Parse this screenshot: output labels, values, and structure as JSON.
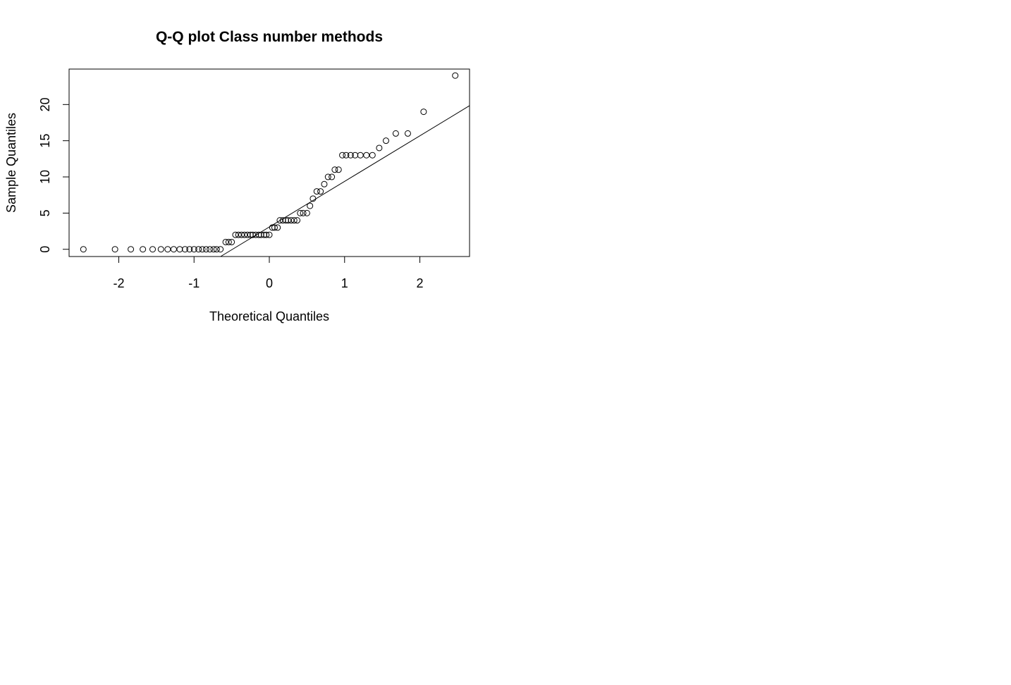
{
  "chart_data": {
    "type": "scatter",
    "title": "Q-Q plot  Class number methods",
    "xlabel": "Theoretical Quantiles",
    "ylabel": "Sample Quantiles",
    "xlim": [
      -2.66,
      2.66
    ],
    "ylim": [
      -1.0,
      24.9
    ],
    "x_ticks": [
      -2,
      -1,
      0,
      1,
      2
    ],
    "x_tick_labels": [
      "-2",
      "-1",
      "0",
      "1",
      "2"
    ],
    "y_ticks": [
      0,
      5,
      10,
      15,
      20
    ],
    "y_tick_labels": [
      "0",
      "5",
      "10",
      "15",
      "20"
    ],
    "grid": false,
    "legend": "none",
    "point_color": "#000000",
    "points": [
      [
        -2.47,
        0
      ],
      [
        -2.05,
        0
      ],
      [
        -1.84,
        0
      ],
      [
        -1.68,
        0
      ],
      [
        -1.55,
        0
      ],
      [
        -1.44,
        0
      ],
      [
        -1.35,
        0
      ],
      [
        -1.27,
        0
      ],
      [
        -1.19,
        0
      ],
      [
        -1.12,
        0
      ],
      [
        -1.06,
        0
      ],
      [
        -1.0,
        0
      ],
      [
        -0.94,
        0
      ],
      [
        -0.89,
        0
      ],
      [
        -0.84,
        0
      ],
      [
        -0.79,
        0
      ],
      [
        -0.74,
        0
      ],
      [
        -0.7,
        0
      ],
      [
        -0.65,
        0
      ],
      [
        -0.58,
        1
      ],
      [
        -0.54,
        1
      ],
      [
        -0.5,
        1
      ],
      [
        -0.45,
        2
      ],
      [
        -0.41,
        2
      ],
      [
        -0.37,
        2
      ],
      [
        -0.33,
        2
      ],
      [
        -0.29,
        2
      ],
      [
        -0.25,
        2
      ],
      [
        -0.22,
        2
      ],
      [
        -0.18,
        2
      ],
      [
        -0.14,
        2
      ],
      [
        -0.11,
        2
      ],
      [
        -0.07,
        2
      ],
      [
        -0.04,
        2
      ],
      [
        0.0,
        2
      ],
      [
        0.04,
        3
      ],
      [
        0.07,
        3
      ],
      [
        0.11,
        3
      ],
      [
        0.14,
        4
      ],
      [
        0.18,
        4
      ],
      [
        0.22,
        4
      ],
      [
        0.25,
        4
      ],
      [
        0.29,
        4
      ],
      [
        0.33,
        4
      ],
      [
        0.37,
        4
      ],
      [
        0.41,
        5
      ],
      [
        0.45,
        5
      ],
      [
        0.5,
        5
      ],
      [
        0.54,
        6
      ],
      [
        0.58,
        7
      ],
      [
        0.63,
        8
      ],
      [
        0.68,
        8
      ],
      [
        0.73,
        9
      ],
      [
        0.78,
        10
      ],
      [
        0.83,
        10
      ],
      [
        0.87,
        11
      ],
      [
        0.92,
        11
      ],
      [
        0.97,
        13
      ],
      [
        1.02,
        13
      ],
      [
        1.08,
        13
      ],
      [
        1.14,
        13
      ],
      [
        1.21,
        13
      ],
      [
        1.29,
        13
      ],
      [
        1.37,
        13
      ],
      [
        1.46,
        14
      ],
      [
        1.55,
        15
      ],
      [
        1.68,
        16
      ],
      [
        1.84,
        16
      ],
      [
        2.05,
        19
      ],
      [
        2.47,
        24
      ]
    ],
    "reference_line": {
      "intercept": 3.08,
      "slope": 6.3
    },
    "line_color": "#000000"
  }
}
